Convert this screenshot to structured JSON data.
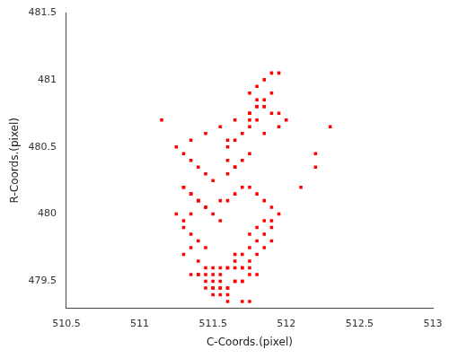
{
  "chart_data": {
    "type": "scatter",
    "x": [
      511.75,
      511.8,
      511.85,
      511.9,
      511.95,
      512.0,
      511.95,
      511.85,
      511.65,
      511.55,
      511.45,
      511.35,
      511.25,
      511.3,
      511.35,
      511.4,
      511.45,
      511.5,
      511.3,
      511.35,
      511.4,
      511.45,
      511.5,
      511.55,
      511.3,
      511.35,
      511.4,
      511.45,
      511.35,
      511.3,
      511.25,
      511.3,
      511.35,
      511.4,
      511.45,
      511.35,
      511.3,
      511.4,
      511.45,
      511.5,
      511.55,
      511.6,
      511.65,
      511.7,
      511.75,
      511.8,
      511.85,
      511.9,
      511.9,
      511.85,
      511.8,
      511.75,
      511.7,
      511.65,
      511.75,
      511.8,
      511.85,
      511.9,
      511.95,
      511.9,
      511.85,
      511.8,
      511.75,
      511.7,
      511.65,
      511.6,
      511.55,
      511.6,
      511.65,
      511.7,
      511.75,
      511.6,
      511.65,
      511.6,
      511.65,
      511.7,
      511.75,
      511.8,
      511.75,
      511.8,
      511.85,
      511.9,
      511.8,
      511.85,
      511.9,
      511.95,
      511.75,
      511.8,
      511.85,
      511.75,
      511.55,
      511.5,
      511.45,
      511.4,
      511.35,
      511.4,
      511.45,
      511.5,
      511.55,
      511.6,
      511.65,
      511.7,
      511.75,
      511.5,
      511.55,
      511.6,
      511.65,
      511.7,
      511.45,
      511.5,
      511.55,
      511.6,
      511.65,
      511.7,
      511.75,
      511.8,
      511.5,
      511.55,
      511.6,
      511.6,
      511.7,
      511.75,
      511.15,
      511.6,
      512.3,
      512.2,
      512.2,
      512.1
    ],
    "y": [
      480.75,
      480.8,
      480.8,
      480.75,
      480.75,
      480.7,
      480.65,
      480.6,
      480.7,
      480.65,
      480.6,
      480.55,
      480.5,
      480.45,
      480.4,
      480.35,
      480.3,
      480.25,
      480.2,
      480.15,
      480.1,
      480.05,
      480.0,
      479.95,
      480.2,
      480.15,
      480.1,
      480.05,
      480.0,
      479.95,
      480.0,
      479.9,
      479.85,
      479.8,
      479.75,
      479.75,
      479.7,
      479.65,
      479.6,
      479.6,
      479.6,
      479.6,
      479.65,
      479.7,
      479.75,
      479.8,
      479.85,
      479.9,
      479.8,
      479.75,
      479.7,
      479.65,
      479.6,
      479.7,
      479.85,
      479.9,
      479.95,
      479.95,
      480.0,
      480.05,
      480.1,
      480.15,
      480.2,
      480.2,
      480.15,
      480.1,
      480.1,
      480.3,
      480.35,
      480.4,
      480.45,
      480.4,
      480.35,
      480.5,
      480.55,
      480.6,
      480.65,
      480.7,
      480.75,
      480.8,
      480.85,
      480.9,
      480.95,
      481.0,
      481.05,
      481.05,
      480.9,
      480.85,
      480.8,
      480.7,
      479.5,
      479.5,
      479.5,
      479.55,
      479.55,
      479.55,
      479.55,
      479.55,
      479.55,
      479.6,
      479.6,
      479.6,
      479.6,
      479.45,
      479.45,
      479.45,
      479.5,
      479.5,
      479.45,
      479.45,
      479.45,
      479.45,
      479.5,
      479.5,
      479.55,
      479.55,
      479.4,
      479.4,
      479.4,
      479.35,
      479.35,
      479.35,
      480.7,
      480.55,
      480.65,
      480.45,
      480.35,
      480.2
    ],
    "xlim": [
      510.5,
      513
    ],
    "ylim": [
      479.3,
      481.5
    ],
    "xticks": [
      510.5,
      511,
      511.5,
      512,
      512.5,
      513
    ],
    "yticks": [
      479.5,
      480,
      480.5,
      481,
      481.5
    ],
    "xlabel": "C-Coords.(pixel)",
    "ylabel": "R-Coords.(pixel)",
    "color": "#ff0000",
    "marker": "square",
    "grid": false
  }
}
